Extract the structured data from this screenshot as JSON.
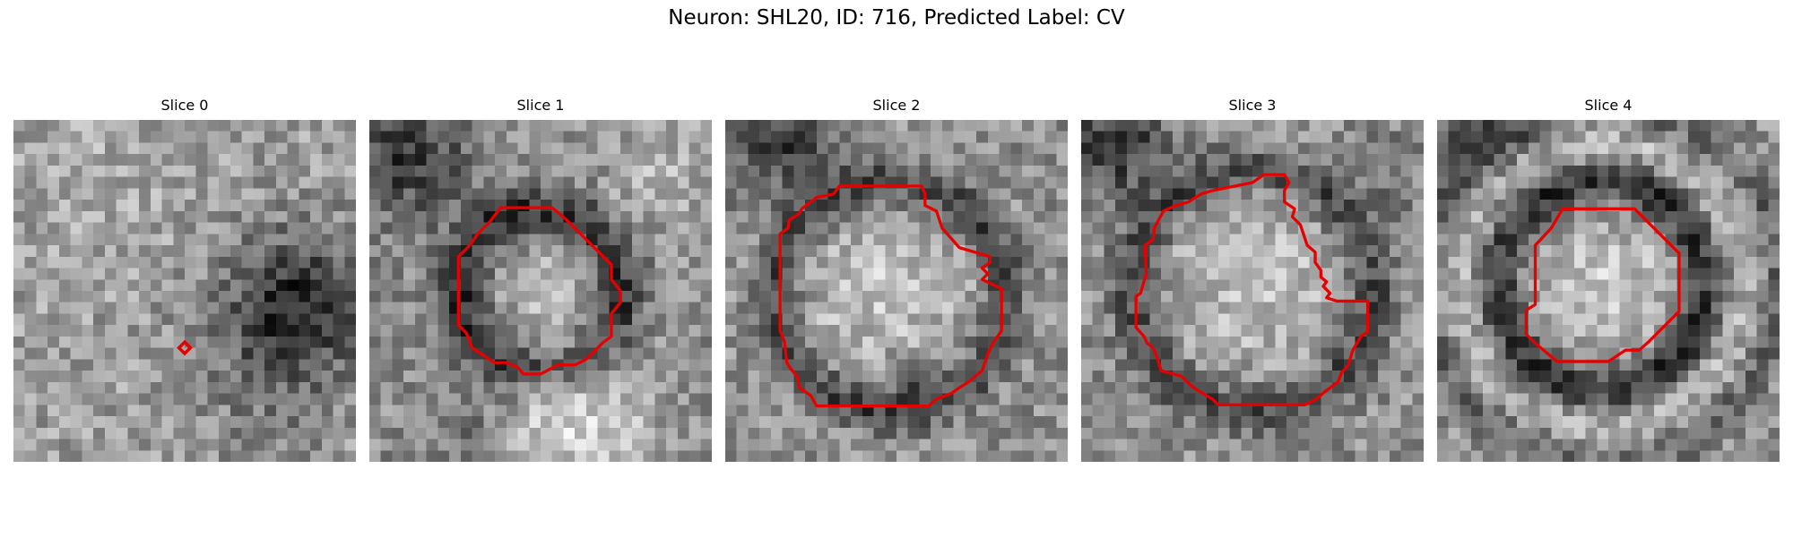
{
  "figure": {
    "title": "Neuron: SHL20, ID: 716, Predicted Label: CV"
  },
  "panels": [
    {
      "title": "Slice 0"
    },
    {
      "title": "Slice 1"
    },
    {
      "title": "Slice 2"
    },
    {
      "title": "Slice 3"
    },
    {
      "title": "Slice 4"
    }
  ],
  "colors": {
    "contour": "#e60000",
    "colormap": "grayscale"
  }
}
